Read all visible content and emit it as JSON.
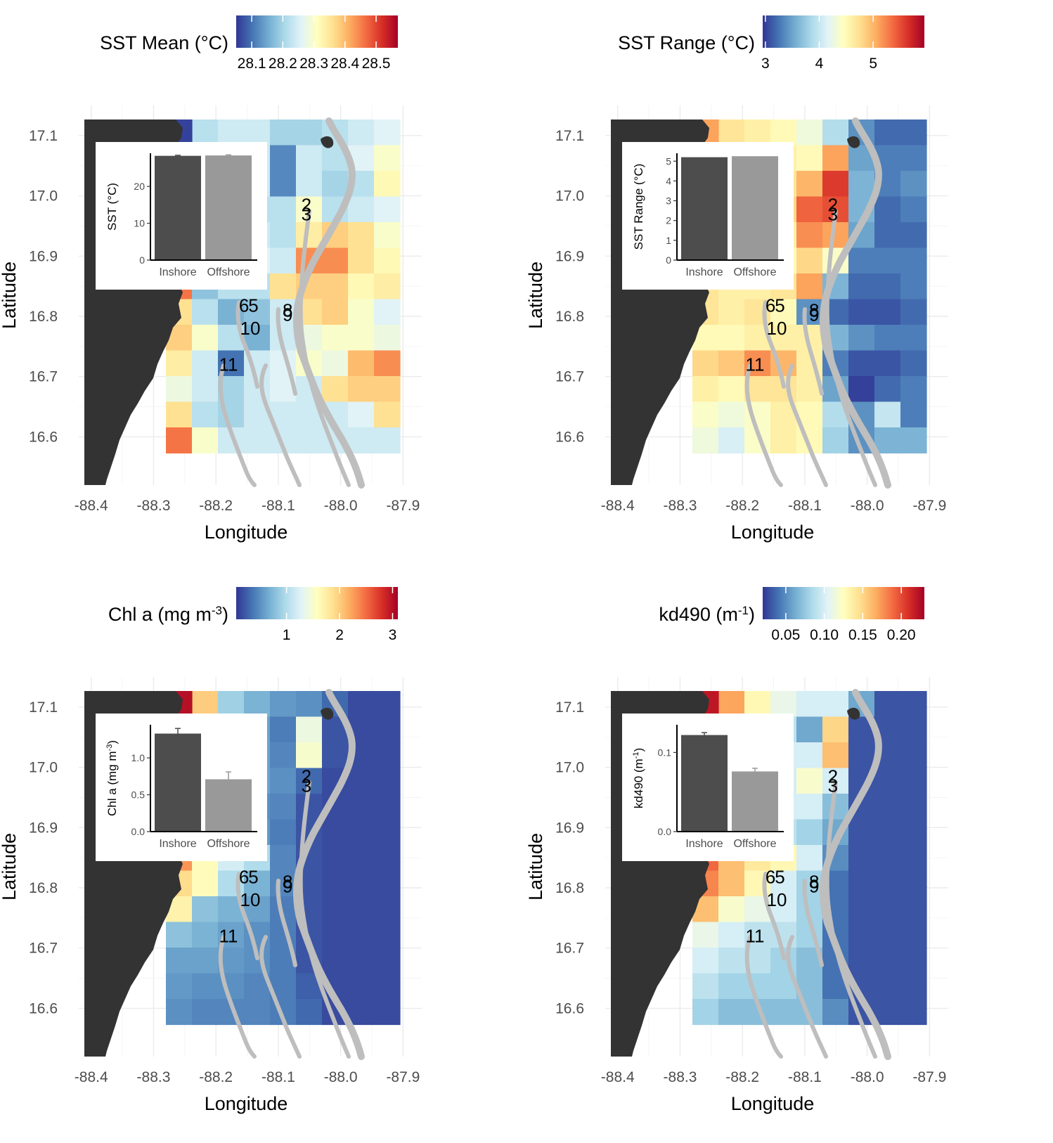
{
  "panels": [
    {
      "id": "sst-mean",
      "legend": {
        "title": "SST Mean (°C)",
        "ticks": [
          "28.1",
          "28.2",
          "28.3",
          "28.4",
          "28.5"
        ],
        "tick_values": [
          28.1,
          28.2,
          28.3,
          28.4,
          28.5
        ],
        "min": 28.05,
        "max": 28.57
      },
      "inset": {
        "ylabel": "SST (°C)",
        "categories": [
          "Inshore",
          "Offshore"
        ],
        "values": [
          28.3,
          28.4
        ],
        "errors": [
          0.15,
          0.15
        ],
        "ymax": 29,
        "ticks": [
          "0",
          "10",
          "20"
        ],
        "tick_values": [
          0,
          10,
          20
        ]
      }
    },
    {
      "id": "sst-range",
      "legend": {
        "title": "SST Range (°C)",
        "ticks": [
          "3",
          "4",
          "5"
        ],
        "tick_values": [
          3,
          4,
          5
        ],
        "min": 2.95,
        "max": 5.95
      },
      "inset": {
        "ylabel": "SST Range (°C)",
        "categories": [
          "Inshore",
          "Offshore"
        ],
        "values": [
          5.2,
          5.25
        ],
        "errors": [
          0,
          0
        ],
        "ymax": 5.4,
        "ticks": [
          "0",
          "1",
          "2",
          "3",
          "4",
          "5"
        ],
        "tick_values": [
          0,
          1,
          2,
          3,
          4,
          5
        ]
      }
    },
    {
      "id": "chl-a",
      "legend": {
        "title": "Chl a (mg m",
        "title_sup": "-3",
        "title_end": ")",
        "ticks": [
          "1",
          "2",
          "3"
        ],
        "tick_values": [
          1,
          2,
          3
        ],
        "min": 0.05,
        "max": 3.1
      },
      "inset": {
        "ylabel": "Chl a (mg m",
        "ylabel_sup": "-3",
        "ylabel_end": ")",
        "categories": [
          "Inshore",
          "Offshore"
        ],
        "values": [
          1.33,
          0.71
        ],
        "errors": [
          0.07,
          0.1
        ],
        "ymax": 1.45,
        "ticks": [
          "0.0",
          "0.5",
          "1.0"
        ],
        "tick_values": [
          0,
          0.5,
          1.0
        ]
      }
    },
    {
      "id": "kd490",
      "legend": {
        "title": "kd490 (m",
        "title_sup": "-1",
        "title_end": ")",
        "ticks": [
          "0.05",
          "0.10",
          "0.15",
          "0.20"
        ],
        "tick_values": [
          0.05,
          0.1,
          0.15,
          0.2
        ],
        "min": 0.02,
        "max": 0.23
      },
      "inset": {
        "ylabel": "kd490 (m",
        "ylabel_sup": "-1",
        "ylabel_end": ")",
        "categories": [
          "Inshore",
          "Offshore"
        ],
        "values": [
          0.122,
          0.076
        ],
        "errors": [
          0.003,
          0.004
        ],
        "ymax": 0.135,
        "ticks": [
          "0.0",
          "0.1"
        ],
        "tick_values": [
          0,
          0.1
        ]
      }
    }
  ],
  "axes": {
    "xlabel": "Longitude",
    "ylabel": "Latitude",
    "x_ticks": [
      "-88.4",
      "-88.3",
      "-88.2",
      "-88.1",
      "-88.0",
      "-87.9"
    ],
    "x_values": [
      -88.4,
      -88.3,
      -88.2,
      -88.1,
      -88.0,
      -87.9
    ],
    "y_ticks": [
      "16.6",
      "16.7",
      "16.8",
      "16.9",
      "17.0",
      "17.1"
    ],
    "y_values": [
      16.6,
      16.7,
      16.8,
      16.9,
      17.0,
      17.1
    ],
    "xlim": [
      -88.42,
      -87.87
    ],
    "ylim": [
      16.52,
      17.15
    ]
  },
  "sites": [
    {
      "label": "2",
      "lon": -88.055,
      "lat": 16.985
    },
    {
      "label": "3",
      "lon": -88.055,
      "lat": 16.97
    },
    {
      "label": "6",
      "lon": -88.155,
      "lat": 16.818
    },
    {
      "label": "5",
      "lon": -88.14,
      "lat": 16.818
    },
    {
      "label": "8",
      "lon": -88.085,
      "lat": 16.81
    },
    {
      "label": "9",
      "lon": -88.085,
      "lat": 16.803
    },
    {
      "label": "10",
      "lon": -88.145,
      "lat": 16.78
    },
    {
      "label": "11",
      "lon": -88.18,
      "lat": 16.72
    }
  ],
  "colors": {
    "land": "#333333",
    "reef": "#bebebe",
    "grid": "#ebebeb",
    "bar_inshore": "#4d4d4d",
    "bar_offshore": "#999999",
    "scale": [
      "#313695",
      "#4575b4",
      "#74add1",
      "#abd9e9",
      "#e0f3f8",
      "#ffffbf",
      "#fee090",
      "#fdae61",
      "#f46d43",
      "#d73027",
      "#a50026"
    ]
  },
  "chart_data": [
    {
      "type": "heatmap",
      "title": "SST Mean (°C)",
      "xlabel": "Longitude",
      "ylabel": "Latitude",
      "note": "grid cells 0.04° lon × 0.04° lat; rows north to south, columns west to east starting at -88.31",
      "values": [
        [
          28.06,
          28.22,
          28.24,
          28.24,
          28.2,
          28.2,
          28.22,
          28.24,
          28.26
        ],
        [
          null,
          null,
          null,
          28.24,
          28.12,
          28.24,
          28.22,
          28.26,
          28.3
        ],
        [
          null,
          null,
          null,
          28.24,
          28.12,
          28.24,
          28.2,
          28.22,
          28.32
        ],
        [
          null,
          null,
          null,
          28.22,
          28.22,
          28.3,
          28.22,
          28.24,
          28.26
        ],
        [
          null,
          null,
          null,
          28.24,
          28.22,
          28.34,
          28.38,
          28.36,
          28.3
        ],
        [
          null,
          null,
          null,
          28.26,
          28.24,
          28.44,
          28.44,
          28.36,
          28.32
        ],
        [
          28.46,
          28.18,
          28.22,
          28.22,
          28.36,
          28.38,
          28.38,
          28.32,
          28.34
        ],
        [
          28.36,
          28.22,
          28.16,
          28.18,
          28.24,
          28.36,
          28.38,
          28.3,
          28.26
        ],
        [
          28.38,
          28.3,
          28.22,
          28.16,
          28.24,
          28.28,
          28.3,
          28.3,
          28.28
        ],
        [
          28.34,
          28.24,
          28.1,
          28.24,
          28.26,
          28.3,
          28.28,
          28.4,
          28.44
        ],
        [
          28.28,
          28.24,
          28.2,
          28.24,
          28.26,
          28.24,
          28.36,
          28.38,
          28.38
        ],
        [
          28.36,
          28.22,
          28.2,
          28.24,
          28.24,
          28.24,
          28.24,
          28.26,
          28.36
        ],
        [
          28.46,
          28.3,
          28.24,
          28.24,
          28.24,
          28.24,
          28.24,
          28.24,
          28.24
        ]
      ]
    },
    {
      "type": "heatmap",
      "title": "SST Range (°C)",
      "xlabel": "Longitude",
      "ylabel": "Latitude",
      "values": [
        [
          5.1,
          4.7,
          4.6,
          4.5,
          4.3,
          3.9,
          3.4,
          3.2,
          3.2
        ],
        [
          null,
          null,
          null,
          4.6,
          4.5,
          5.1,
          3.5,
          3.3,
          3.3
        ],
        [
          null,
          null,
          null,
          4.7,
          5.0,
          5.6,
          3.6,
          3.3,
          3.4
        ],
        [
          null,
          null,
          null,
          4.8,
          5.4,
          5.5,
          3.6,
          3.2,
          3.3
        ],
        [
          null,
          null,
          null,
          4.6,
          5.2,
          5.1,
          3.5,
          3.2,
          3.2
        ],
        [
          null,
          null,
          null,
          4.5,
          4.8,
          4.4,
          3.3,
          3.3,
          3.3
        ],
        [
          4.7,
          4.6,
          4.6,
          4.7,
          5.1,
          3.6,
          3.2,
          3.2,
          3.3
        ],
        [
          4.7,
          4.6,
          4.7,
          4.5,
          3.4,
          3.2,
          3.1,
          3.1,
          3.2
        ],
        [
          4.5,
          4.5,
          4.6,
          4.6,
          4.6,
          3.6,
          3.4,
          3.3,
          3.3
        ],
        [
          4.8,
          4.9,
          5.2,
          5.0,
          4.6,
          3.3,
          3.1,
          3.1,
          3.2
        ],
        [
          4.6,
          4.5,
          4.7,
          4.7,
          4.6,
          3.5,
          3.0,
          3.2,
          3.3
        ],
        [
          4.4,
          4.3,
          4.4,
          4.6,
          4.5,
          3.9,
          3.4,
          4.0,
          3.3
        ],
        [
          4.3,
          4.1,
          4.4,
          4.6,
          4.5,
          3.8,
          3.4,
          3.6,
          3.6
        ]
      ]
    },
    {
      "type": "heatmap",
      "title": "Chl a (mg m-3)",
      "xlabel": "Longitude",
      "ylabel": "Latitude",
      "values": [
        [
          3.0,
          2.0,
          0.9,
          0.7,
          0.55,
          0.5,
          0.3,
          0.15,
          0.15
        ],
        [
          null,
          null,
          null,
          0.6,
          0.4,
          1.4,
          0.2,
          0.15,
          0.15
        ],
        [
          null,
          null,
          null,
          0.6,
          0.45,
          1.5,
          0.2,
          0.15,
          0.15
        ],
        [
          null,
          null,
          null,
          0.6,
          0.5,
          0.3,
          0.15,
          0.15,
          0.15
        ],
        [
          null,
          null,
          null,
          0.5,
          0.45,
          0.2,
          0.15,
          0.15,
          0.15
        ],
        [
          null,
          null,
          null,
          0.55,
          0.4,
          0.2,
          0.15,
          0.15,
          0.15
        ],
        [
          2.3,
          1.6,
          1.2,
          1.0,
          0.45,
          0.2,
          0.15,
          0.15,
          0.15
        ],
        [
          1.9,
          1.6,
          1.0,
          0.7,
          0.45,
          0.2,
          0.15,
          0.15,
          0.15
        ],
        [
          1.7,
          0.8,
          0.7,
          0.6,
          0.4,
          0.2,
          0.15,
          0.15,
          0.15
        ],
        [
          0.8,
          0.7,
          0.6,
          0.5,
          0.4,
          0.2,
          0.15,
          0.15,
          0.15
        ],
        [
          0.6,
          0.6,
          0.55,
          0.5,
          0.4,
          0.2,
          0.15,
          0.15,
          0.15
        ],
        [
          0.55,
          0.5,
          0.5,
          0.45,
          0.4,
          0.25,
          0.15,
          0.15,
          0.15
        ],
        [
          0.5,
          0.45,
          0.45,
          0.45,
          0.4,
          0.3,
          0.15,
          0.15,
          0.15
        ]
      ]
    },
    {
      "type": "heatmap",
      "title": "kd490 (m-1)",
      "xlabel": "Longitude",
      "ylabel": "Latitude",
      "values": [
        [
          0.22,
          0.17,
          0.13,
          0.11,
          0.1,
          0.1,
          0.06,
          0.03,
          0.03
        ],
        [
          null,
          null,
          null,
          0.09,
          0.06,
          0.15,
          0.03,
          0.03,
          0.03
        ],
        [
          null,
          null,
          null,
          0.1,
          0.1,
          0.16,
          0.03,
          0.03,
          0.03
        ],
        [
          null,
          null,
          null,
          0.1,
          0.12,
          0.1,
          0.03,
          0.03,
          0.03
        ],
        [
          null,
          null,
          null,
          0.1,
          0.1,
          0.07,
          0.03,
          0.03,
          0.03
        ],
        [
          null,
          null,
          null,
          0.09,
          0.08,
          0.06,
          0.03,
          0.03,
          0.03
        ],
        [
          0.19,
          0.16,
          0.14,
          0.13,
          0.1,
          0.05,
          0.03,
          0.03,
          0.03
        ],
        [
          0.18,
          0.16,
          0.13,
          0.1,
          0.08,
          0.04,
          0.03,
          0.03,
          0.03
        ],
        [
          0.16,
          0.12,
          0.11,
          0.1,
          0.08,
          0.04,
          0.03,
          0.03,
          0.03
        ],
        [
          0.11,
          0.1,
          0.09,
          0.09,
          0.08,
          0.04,
          0.03,
          0.03,
          0.03
        ],
        [
          0.1,
          0.09,
          0.09,
          0.08,
          0.07,
          0.04,
          0.03,
          0.03,
          0.03
        ],
        [
          0.09,
          0.08,
          0.08,
          0.08,
          0.07,
          0.04,
          0.03,
          0.03,
          0.03
        ],
        [
          0.08,
          0.07,
          0.07,
          0.07,
          0.07,
          0.05,
          0.03,
          0.03,
          0.03
        ]
      ]
    }
  ]
}
